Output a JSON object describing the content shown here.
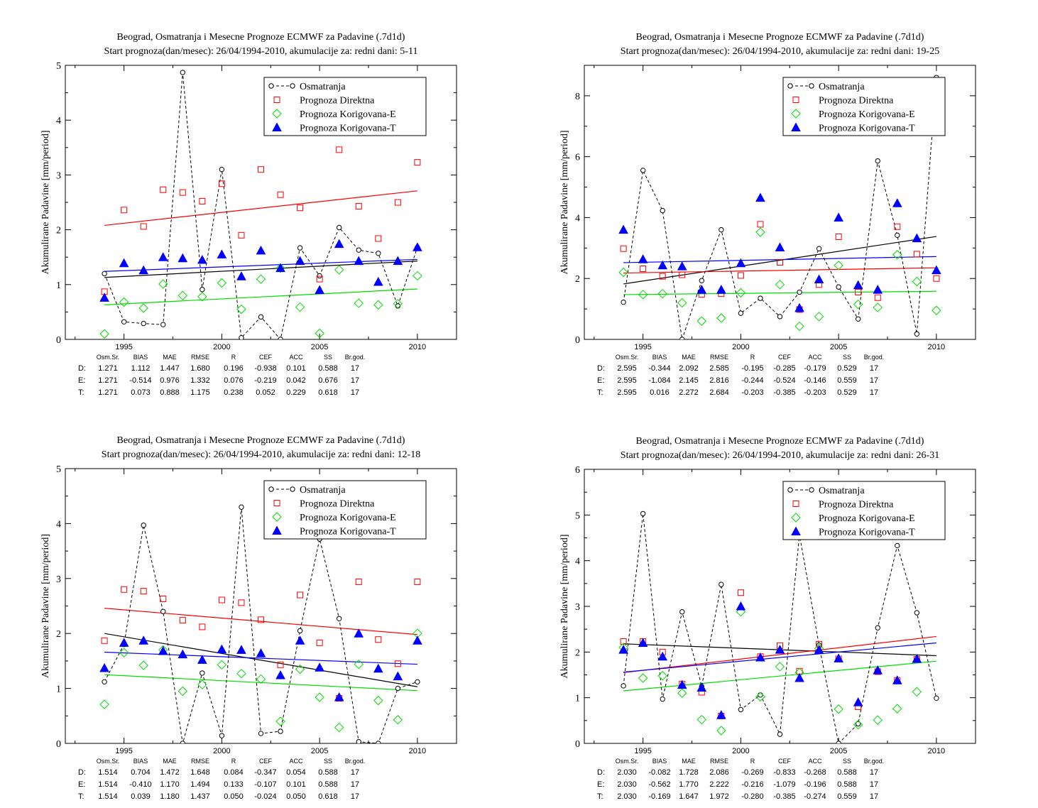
{
  "figure": {
    "legend": [
      "Osmatranja",
      "Prognoza Direktna",
      "Prognoza Korigovana-E",
      "Prognoza Korigovana-T"
    ],
    "stats_header": [
      "Osm.Sr.",
      "BIAS",
      "MAE",
      "RMSE",
      "R",
      "CEF",
      "ACC",
      "SS",
      "Br.god."
    ],
    "row_labels": [
      "D:",
      "E:",
      "T:"
    ]
  },
  "colors": {
    "obs": "#000000",
    "direct": "#ff0000",
    "corr_e": "#00dd00",
    "corr_t": "#0000ff"
  },
  "chart_data": [
    {
      "type": "scatter",
      "title": "Beograd, Osmatranja i Mesecne Prognoze ECMWF za Padavine (.7d1d)",
      "subtitle": "Start prognoza(dan/mesec): 26/04/1994-2010, akumulacije za: redni dani: 5-11",
      "ylabel": "Akumulirane Padavine [mm/period]",
      "xlabel": "",
      "xlim": [
        1992,
        2012
      ],
      "ylim": [
        0,
        5
      ],
      "xticks": [
        1995,
        2000,
        2005,
        2010
      ],
      "yticks": [
        0,
        1,
        2,
        3,
        4,
        5
      ],
      "legend_position": "top-right",
      "x": [
        1994,
        1995,
        1996,
        1997,
        1998,
        1999,
        2000,
        2001,
        2002,
        2003,
        2004,
        2005,
        2006,
        2007,
        2008,
        2009,
        2010
      ],
      "series": [
        {
          "name": "Osmatranja",
          "values": [
            1.2,
            0.32,
            0.29,
            0.27,
            4.87,
            0.91,
            3.1,
            0.03,
            0.41,
            0.0,
            1.67,
            1.16,
            2.04,
            1.63,
            1.57,
            0.61,
            1.68
          ]
        },
        {
          "name": "Prognoza Direktna",
          "values": [
            0.87,
            2.36,
            2.06,
            2.73,
            2.68,
            2.52,
            2.84,
            1.9,
            3.1,
            2.64,
            2.4,
            1.1,
            3.46,
            2.43,
            1.84,
            2.5,
            3.23
          ]
        },
        {
          "name": "Prognoza Korigovana-E",
          "values": [
            0.1,
            0.68,
            0.57,
            1.01,
            0.8,
            0.78,
            1.03,
            0.55,
            1.1,
            1.3,
            0.59,
            0.11,
            1.27,
            0.66,
            0.63,
            0.65,
            1.16
          ]
        },
        {
          "name": "Prognoza Korigovana-T",
          "values": [
            0.76,
            1.39,
            1.26,
            1.5,
            1.48,
            1.45,
            1.55,
            1.15,
            1.62,
            1.3,
            1.43,
            0.9,
            1.74,
            1.43,
            1.05,
            1.43,
            1.68
          ]
        }
      ],
      "trends": {
        "obs": [
          1.13,
          1.43
        ],
        "direct": [
          2.08,
          2.71
        ],
        "corr_e": [
          0.63,
          0.92
        ],
        "corr_t": [
          1.24,
          1.46
        ]
      },
      "stats": [
        [
          "1.271",
          "1.112",
          "1.447",
          "1.680",
          "0.196",
          "-0.938",
          "0.101",
          "0.588",
          "17"
        ],
        [
          "1.271",
          "-0.514",
          "0.976",
          "1.332",
          "0.076",
          "-0.219",
          "0.042",
          "0.676",
          "17"
        ],
        [
          "1.271",
          "0.073",
          "0.888",
          "1.175",
          "0.238",
          "0.052",
          "0.229",
          "0.618",
          "17"
        ]
      ]
    },
    {
      "type": "scatter",
      "title": "Beograd, Osmatranja i Mesecne Prognoze ECMWF za Padavine (.7d1d)",
      "subtitle": "Start prognoza(dan/mesec): 26/04/1994-2010, akumulacije za: redni dani: 19-25",
      "ylabel": "Akumulirane Padavine [mm/period]",
      "xlabel": "",
      "xlim": [
        1992,
        2012
      ],
      "ylim": [
        0,
        9
      ],
      "xticks": [
        1995,
        2000,
        2005,
        2010
      ],
      "yticks": [
        0,
        2,
        4,
        6,
        8
      ],
      "legend_position": "top-right",
      "x": [
        1994,
        1995,
        1996,
        1997,
        1998,
        1999,
        2000,
        2001,
        2002,
        2003,
        2004,
        2005,
        2006,
        2007,
        2008,
        2009,
        2010
      ],
      "series": [
        {
          "name": "Osmatranja",
          "values": [
            1.22,
            5.55,
            4.23,
            0.0,
            1.93,
            3.6,
            0.86,
            1.35,
            0.75,
            1.55,
            2.98,
            1.72,
            0.67,
            5.86,
            3.42,
            0.18,
            8.6
          ]
        },
        {
          "name": "Prognoza Direktna",
          "values": [
            2.98,
            2.32,
            2.07,
            2.12,
            1.48,
            1.5,
            2.1,
            3.78,
            2.53,
            0.98,
            1.8,
            3.37,
            1.55,
            1.37,
            3.7,
            2.8,
            2.0
          ]
        },
        {
          "name": "Prognoza Korigovana-E",
          "values": [
            2.2,
            1.47,
            1.5,
            1.2,
            0.6,
            0.7,
            1.53,
            3.52,
            1.8,
            0.43,
            0.75,
            2.43,
            1.15,
            1.05,
            2.78,
            1.9,
            0.95
          ]
        },
        {
          "name": "Prognoza Korigovana-T",
          "values": [
            3.6,
            2.63,
            2.43,
            2.4,
            1.63,
            1.63,
            2.5,
            4.65,
            3.02,
            1.03,
            1.97,
            4.0,
            1.78,
            1.63,
            4.47,
            3.32,
            2.27
          ]
        }
      ],
      "trends": {
        "obs": [
          1.82,
          3.38
        ],
        "direct": [
          2.18,
          2.35
        ],
        "corr_e": [
          1.47,
          1.58
        ],
        "corr_t": [
          2.52,
          2.72
        ]
      },
      "stats": [
        [
          "2.595",
          "-0.344",
          "2.092",
          "2.585",
          "-0.195",
          "-0.285",
          "-0.179",
          "0.529",
          "17"
        ],
        [
          "2.595",
          "-1.084",
          "2.145",
          "2.816",
          "-0.244",
          "-0.524",
          "-0.146",
          "0.559",
          "17"
        ],
        [
          "2.595",
          "0.016",
          "2.272",
          "2.684",
          "-0.203",
          "-0.385",
          "-0.203",
          "0.529",
          "17"
        ]
      ]
    },
    {
      "type": "scatter",
      "title": "Beograd, Osmatranja i Mesecne Prognoze ECMWF za Padavine (.7d1d)",
      "subtitle": "Start prognoza(dan/mesec): 26/04/1994-2010, akumulacije za: redni dani: 12-18",
      "ylabel": "Akumulirane Padavine [mm/period]",
      "xlabel": "",
      "xlim": [
        1992,
        2012
      ],
      "ylim": [
        0,
        5
      ],
      "xticks": [
        1995,
        2000,
        2005,
        2010
      ],
      "yticks": [
        0,
        1,
        2,
        3,
        4,
        5
      ],
      "legend_position": "top-right",
      "x": [
        1994,
        1995,
        1996,
        1997,
        1998,
        1999,
        2000,
        2001,
        2002,
        2003,
        2004,
        2005,
        2006,
        2007,
        2008,
        2009,
        2010
      ],
      "series": [
        {
          "name": "Osmatranja",
          "values": [
            1.12,
            1.8,
            3.97,
            2.4,
            0.0,
            1.28,
            0.14,
            4.3,
            0.18,
            0.22,
            2.05,
            3.72,
            2.27,
            0.03,
            0.0,
            1.0,
            1.12
          ]
        },
        {
          "name": "Prognoza Direktna",
          "values": [
            1.87,
            2.8,
            2.77,
            2.63,
            2.24,
            2.12,
            2.61,
            2.56,
            2.25,
            1.43,
            2.7,
            1.83,
            0.82,
            2.94,
            1.89,
            1.45,
            2.94
          ]
        },
        {
          "name": "Prognoza Korigovana-E",
          "values": [
            0.71,
            1.65,
            1.42,
            1.7,
            0.95,
            1.07,
            1.43,
            1.27,
            1.17,
            0.4,
            1.35,
            0.84,
            0.29,
            1.44,
            0.78,
            0.43,
            2.0
          ]
        },
        {
          "name": "Prognoza Korigovana-T",
          "values": [
            1.37,
            1.83,
            1.87,
            1.68,
            1.62,
            1.52,
            1.71,
            1.7,
            1.64,
            1.24,
            1.87,
            1.38,
            0.84,
            2.0,
            1.36,
            1.22,
            1.87
          ]
        }
      ],
      "trends": {
        "obs": [
          2.0,
          1.03
        ],
        "direct": [
          2.46,
          1.98
        ],
        "corr_e": [
          1.25,
          0.96
        ],
        "corr_t": [
          1.66,
          1.44
        ]
      },
      "stats": [
        [
          "1.514",
          "0.704",
          "1.472",
          "1.648",
          "0.084",
          "-0.347",
          "0.054",
          "0.588",
          "17"
        ],
        [
          "1.514",
          "-0.410",
          "1.170",
          "1.494",
          "0.133",
          "-0.107",
          "0.101",
          "0.588",
          "17"
        ],
        [
          "1.514",
          "0.039",
          "1.180",
          "1.437",
          "0.050",
          "-0.024",
          "0.050",
          "0.618",
          "17"
        ]
      ]
    },
    {
      "type": "scatter",
      "title": "Beograd, Osmatranja i Mesecne Prognoze ECMWF za Padavine (.7d1d)",
      "subtitle": "Start prognoza(dan/mesec): 26/04/1994-2010, akumulacije za: redni dani: 26-31",
      "ylabel": "Akumulirane Padavine [mm/period]",
      "xlabel": "",
      "xlim": [
        1992,
        2012
      ],
      "ylim": [
        0,
        6
      ],
      "xticks": [
        1995,
        2000,
        2005,
        2010
      ],
      "yticks": [
        0,
        1,
        2,
        3,
        4,
        5,
        6
      ],
      "legend_position": "top-right",
      "x": [
        1994,
        1995,
        1996,
        1997,
        1998,
        1999,
        2000,
        2001,
        2002,
        2003,
        2004,
        2005,
        2006,
        2007,
        2008,
        2009,
        2010
      ],
      "series": [
        {
          "name": "Osmatranja",
          "values": [
            1.26,
            5.03,
            0.97,
            2.88,
            1.25,
            3.48,
            0.74,
            1.06,
            0.2,
            4.57,
            2.15,
            0.0,
            0.43,
            2.53,
            4.33,
            2.86,
            0.99
          ]
        },
        {
          "name": "Prognoza Direktna",
          "values": [
            2.23,
            2.23,
            2.0,
            1.3,
            1.12,
            0.6,
            3.3,
            1.9,
            2.14,
            1.58,
            2.17,
            1.85,
            0.8,
            1.57,
            1.38,
            1.84,
            5.35
          ]
        },
        {
          "name": "Prognoza Korigovana-E",
          "values": [
            2.1,
            1.43,
            1.48,
            1.1,
            0.52,
            0.28,
            2.88,
            1.02,
            1.68,
            1.55,
            2.08,
            0.75,
            0.41,
            0.51,
            0.76,
            1.13,
            5.45
          ]
        },
        {
          "name": "Prognoza Korigovana-T",
          "values": [
            2.05,
            2.2,
            1.9,
            1.28,
            1.22,
            0.62,
            3.0,
            1.88,
            2.05,
            1.43,
            2.05,
            1.86,
            0.9,
            1.6,
            1.38,
            1.85,
            4.6
          ]
        }
      ],
      "trends": {
        "obs": [
          2.18,
          1.92
        ],
        "direct": [
          1.55,
          2.34
        ],
        "corr_e": [
          1.15,
          1.8
        ],
        "corr_t": [
          1.56,
          2.2
        ]
      },
      "stats": [
        [
          "2.030",
          "-0.082",
          "1.728",
          "2.086",
          "-0.269",
          "-0.833",
          "-0.268",
          "0.588",
          "17"
        ],
        [
          "2.030",
          "-0.562",
          "1.770",
          "2.222",
          "-0.216",
          "-1.079",
          "-0.196",
          "0.588",
          "17"
        ],
        [
          "2.030",
          "-0.169",
          "1.647",
          "1.972",
          "-0.280",
          "-0.385",
          "-0.274",
          "0.559",
          "17"
        ]
      ]
    }
  ]
}
